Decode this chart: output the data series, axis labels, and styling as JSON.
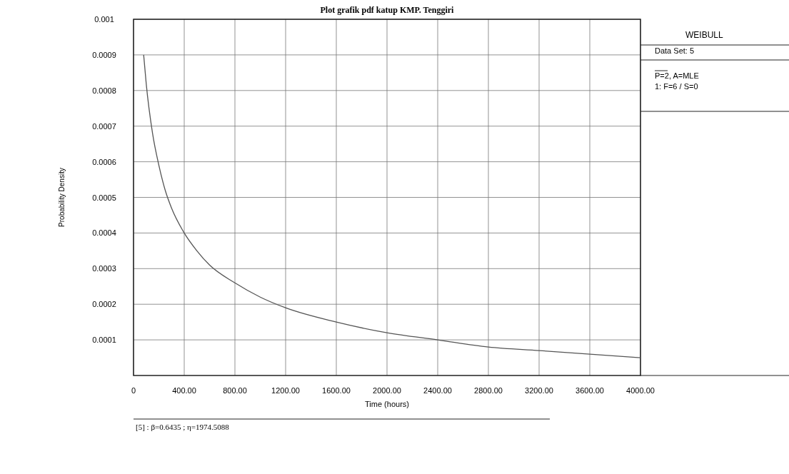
{
  "chart_data": {
    "type": "line",
    "title": "Plot grafik pdf katup KMP. Tenggiri",
    "xlabel": "Time (hours)",
    "ylabel": "Probability Density",
    "annotations": [
      "WEIBULL",
      "Data Set: 5",
      "P=2, A=MLE",
      "1: F=6 / S=0",
      "[5] : β=0.6435 ; η=1974.5088"
    ],
    "series": [
      {
        "color": "#555555",
        "x": [
          80,
          100,
          150,
          200,
          250,
          300,
          400,
          500,
          600,
          800,
          1000,
          1200,
          1600,
          2000,
          2400,
          2800,
          3200,
          3600,
          4000
        ],
        "values": [
          0.0009,
          0.00082,
          0.00068,
          0.00059,
          0.00052,
          0.00047,
          0.0004,
          0.00035,
          0.00031,
          0.00026,
          0.00022,
          0.00019,
          0.00015,
          0.00012,
          0.0001,
          8e-05,
          7e-05,
          6e-05,
          5e-05
        ]
      }
    ],
    "xlim": [
      0,
      4000
    ],
    "ylim": [
      0,
      0.001
    ],
    "xticks": [
      0,
      {
        "value": 400,
        "label": "400.00"
      },
      {
        "value": 800,
        "label": "800.00"
      },
      {
        "value": 1200,
        "label": "1200.00"
      },
      {
        "value": 1600,
        "label": "1600.00"
      },
      {
        "value": 2000,
        "label": "2000.00"
      },
      {
        "value": 2400,
        "label": "2400.00"
      },
      {
        "value": 2800,
        "label": "2800.00"
      },
      {
        "value": 3200,
        "label": "3200.00"
      },
      {
        "value": 3600,
        "label": "3600.00"
      },
      {
        "value": 4000,
        "label": "4000.00"
      }
    ],
    "yticks": [
      0.0001,
      0.0002,
      0.0003,
      0.0004,
      0.0005,
      0.0006,
      0.0007,
      0.0008,
      0.0009,
      0.001
    ],
    "grid": true,
    "marker": "none",
    "line_style": "solid"
  }
}
